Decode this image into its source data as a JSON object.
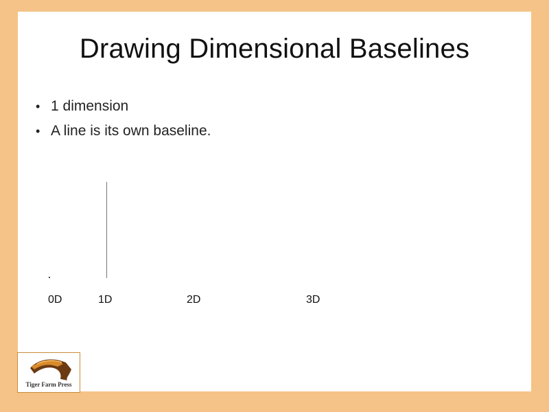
{
  "slide": {
    "title": "Drawing Dimensional Baselines",
    "bullets": [
      "1 dimension",
      "A line is its own baseline."
    ],
    "bullet_glyph": "•",
    "dimension_labels": [
      "0D",
      "1D",
      "2D",
      "3D"
    ],
    "point_glyph": "."
  },
  "logo": {
    "text": "Tiger Farm Press",
    "icon": "tiger-stripe-logo-icon"
  },
  "colors": {
    "frame": "#f5c387",
    "background": "#ffffff",
    "text": "#111111"
  }
}
